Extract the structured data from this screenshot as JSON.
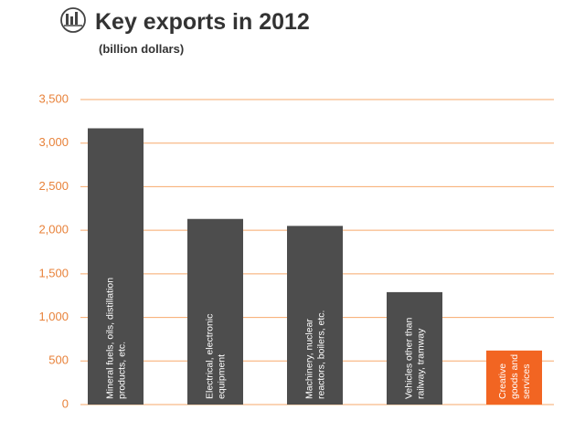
{
  "chart_data": {
    "type": "bar",
    "title": "Key exports in 2012",
    "subtitle": "(billion dollars)",
    "categories": [
      "Mineral fuels, oils, distillation\nproducts, etc.",
      "Electrical, electronic\nequipment",
      "Machinery, nuclear\nreactors, boilers, etc.",
      "Vehicles other than\nrailway, tramway",
      "Creative\ngoods and\nservices"
    ],
    "values": [
      3170,
      2130,
      2050,
      1290,
      620
    ],
    "colors": [
      "#4d4d4d",
      "#4d4d4d",
      "#4d4d4d",
      "#4d4d4d",
      "#f26522"
    ],
    "ylim": [
      0,
      3500
    ],
    "yticks": [
      0,
      500,
      {
        "value": 1000,
        "label": "1,000"
      },
      {
        "value": 1500,
        "label": "1,500"
      },
      {
        "value": 2000,
        "label": "2,000"
      },
      {
        "value": 2500,
        "label": "2,500"
      },
      {
        "value": 3000,
        "label": "3,000"
      },
      {
        "value": 3500,
        "label": "3,500"
      }
    ],
    "grid": true
  }
}
